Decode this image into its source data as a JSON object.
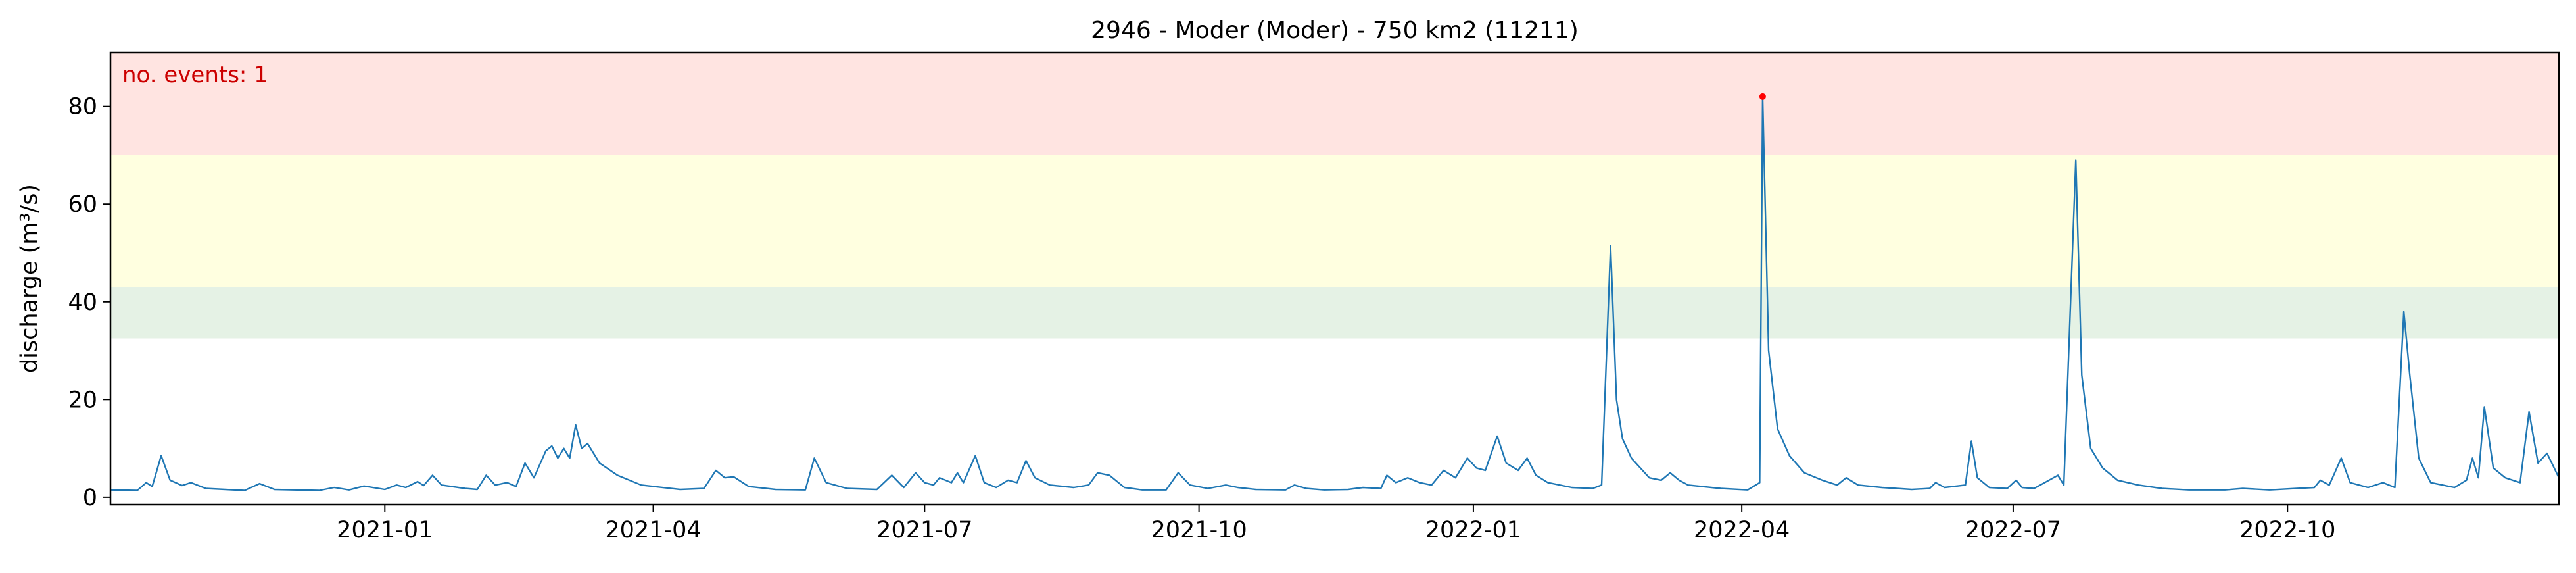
{
  "chart_data": {
    "type": "line",
    "title": "2946 - Moder (Moder) - 750 km2 (11211)",
    "xlabel": "",
    "ylabel": "discharge (m³/s)",
    "xlim": [
      "2020-10-01",
      "2022-12-31"
    ],
    "ylim": [
      -1.5,
      91
    ],
    "grid": false,
    "legend": "none",
    "x_tick_labels": [
      "2021-01",
      "2021-04",
      "2021-07",
      "2021-10",
      "2022-01",
      "2022-04",
      "2022-07",
      "2022-10"
    ],
    "x_ticks": [
      "2021-01-01",
      "2021-04-01",
      "2021-07-01",
      "2021-10-01",
      "2022-01-01",
      "2022-04-01",
      "2022-07-01",
      "2022-10-01"
    ],
    "y_tick_labels": [
      "0",
      "20",
      "40",
      "60",
      "80"
    ],
    "y_ticks": [
      0,
      20,
      40,
      60,
      80
    ],
    "bands": [
      {
        "name": "green",
        "y0": 32.5,
        "y1": 43,
        "color": "#e5f2e5"
      },
      {
        "name": "yellow",
        "y0": 43,
        "y1": 70,
        "color": "#ffffe0"
      },
      {
        "name": "red",
        "y0": 70,
        "y1": 91,
        "color": "#ffe4e1"
      }
    ],
    "annotation": {
      "text": "no. events: 1",
      "color": "#cc0000"
    },
    "event_points": [
      {
        "x": "2022-04-08",
        "y": 82
      }
    ],
    "series_color": "#1f77b4",
    "event_color": "#ff0000",
    "series": [
      {
        "name": "",
        "points": [
          [
            "2020-10-01",
            1.5
          ],
          [
            "2020-10-10",
            1.4
          ],
          [
            "2020-10-13",
            3.0
          ],
          [
            "2020-10-15",
            2.2
          ],
          [
            "2020-10-18",
            8.5
          ],
          [
            "2020-10-21",
            3.5
          ],
          [
            "2020-10-25",
            2.4
          ],
          [
            "2020-10-28",
            3.0
          ],
          [
            "2020-11-02",
            1.8
          ],
          [
            "2020-11-15",
            1.4
          ],
          [
            "2020-11-20",
            2.8
          ],
          [
            "2020-11-25",
            1.6
          ],
          [
            "2020-12-10",
            1.4
          ],
          [
            "2020-12-15",
            2.0
          ],
          [
            "2020-12-20",
            1.5
          ],
          [
            "2020-12-25",
            2.3
          ],
          [
            "2021-01-01",
            1.6
          ],
          [
            "2021-01-05",
            2.5
          ],
          [
            "2021-01-08",
            2.0
          ],
          [
            "2021-01-12",
            3.2
          ],
          [
            "2021-01-14",
            2.4
          ],
          [
            "2021-01-17",
            4.5
          ],
          [
            "2021-01-20",
            2.5
          ],
          [
            "2021-01-28",
            1.8
          ],
          [
            "2021-02-01",
            1.6
          ],
          [
            "2021-02-04",
            4.5
          ],
          [
            "2021-02-07",
            2.5
          ],
          [
            "2021-02-11",
            3.0
          ],
          [
            "2021-02-14",
            2.2
          ],
          [
            "2021-02-17",
            7.0
          ],
          [
            "2021-02-20",
            4.0
          ],
          [
            "2021-02-24",
            9.5
          ],
          [
            "2021-02-26",
            10.5
          ],
          [
            "2021-02-28",
            8.0
          ],
          [
            "2021-03-02",
            10.0
          ],
          [
            "2021-03-04",
            8.0
          ],
          [
            "2021-03-06",
            14.8
          ],
          [
            "2021-03-08",
            10.0
          ],
          [
            "2021-03-10",
            11.0
          ],
          [
            "2021-03-14",
            7.0
          ],
          [
            "2021-03-20",
            4.5
          ],
          [
            "2021-03-28",
            2.5
          ],
          [
            "2021-04-10",
            1.6
          ],
          [
            "2021-04-18",
            1.8
          ],
          [
            "2021-04-22",
            5.5
          ],
          [
            "2021-04-25",
            4.0
          ],
          [
            "2021-04-28",
            4.2
          ],
          [
            "2021-05-03",
            2.2
          ],
          [
            "2021-05-12",
            1.6
          ],
          [
            "2021-05-22",
            1.5
          ],
          [
            "2021-05-25",
            8.0
          ],
          [
            "2021-05-29",
            3.0
          ],
          [
            "2021-06-05",
            1.8
          ],
          [
            "2021-06-15",
            1.6
          ],
          [
            "2021-06-20",
            4.5
          ],
          [
            "2021-06-24",
            2.0
          ],
          [
            "2021-06-28",
            5.0
          ],
          [
            "2021-07-01",
            3.0
          ],
          [
            "2021-07-04",
            2.5
          ],
          [
            "2021-07-06",
            4.0
          ],
          [
            "2021-07-10",
            3.0
          ],
          [
            "2021-07-12",
            5.0
          ],
          [
            "2021-07-14",
            3.0
          ],
          [
            "2021-07-18",
            8.5
          ],
          [
            "2021-07-21",
            3.0
          ],
          [
            "2021-07-25",
            2.0
          ],
          [
            "2021-07-29",
            3.5
          ],
          [
            "2021-08-01",
            3.0
          ],
          [
            "2021-08-04",
            7.5
          ],
          [
            "2021-08-07",
            4.0
          ],
          [
            "2021-08-12",
            2.5
          ],
          [
            "2021-08-20",
            2.0
          ],
          [
            "2021-08-25",
            2.5
          ],
          [
            "2021-08-28",
            5.0
          ],
          [
            "2021-09-01",
            4.5
          ],
          [
            "2021-09-06",
            2.0
          ],
          [
            "2021-09-12",
            1.5
          ],
          [
            "2021-09-20",
            1.5
          ],
          [
            "2021-09-24",
            5.0
          ],
          [
            "2021-09-28",
            2.5
          ],
          [
            "2021-10-04",
            1.8
          ],
          [
            "2021-10-10",
            2.5
          ],
          [
            "2021-10-14",
            2.0
          ],
          [
            "2021-10-20",
            1.6
          ],
          [
            "2021-10-30",
            1.5
          ],
          [
            "2021-11-02",
            2.5
          ],
          [
            "2021-11-06",
            1.8
          ],
          [
            "2021-11-12",
            1.5
          ],
          [
            "2021-11-20",
            1.6
          ],
          [
            "2021-11-25",
            2.0
          ],
          [
            "2021-12-01",
            1.8
          ],
          [
            "2021-12-03",
            4.5
          ],
          [
            "2021-12-06",
            3.0
          ],
          [
            "2021-12-10",
            4.0
          ],
          [
            "2021-12-14",
            3.0
          ],
          [
            "2021-12-18",
            2.5
          ],
          [
            "2021-12-22",
            5.5
          ],
          [
            "2021-12-26",
            4.0
          ],
          [
            "2021-12-30",
            8.0
          ],
          [
            "2022-01-02",
            6.0
          ],
          [
            "2022-01-05",
            5.5
          ],
          [
            "2022-01-09",
            12.5
          ],
          [
            "2022-01-12",
            7.0
          ],
          [
            "2022-01-16",
            5.5
          ],
          [
            "2022-01-19",
            8.0
          ],
          [
            "2022-01-22",
            4.5
          ],
          [
            "2022-01-26",
            3.0
          ],
          [
            "2022-02-03",
            2.0
          ],
          [
            "2022-02-10",
            1.8
          ],
          [
            "2022-02-13",
            2.5
          ],
          [
            "2022-02-16",
            51.5
          ],
          [
            "2022-02-18",
            20.0
          ],
          [
            "2022-02-20",
            12.0
          ],
          [
            "2022-02-23",
            8.0
          ],
          [
            "2022-02-26",
            6.0
          ],
          [
            "2022-03-01",
            4.0
          ],
          [
            "2022-03-05",
            3.5
          ],
          [
            "2022-03-08",
            5.0
          ],
          [
            "2022-03-11",
            3.5
          ],
          [
            "2022-03-14",
            2.5
          ],
          [
            "2022-03-25",
            1.8
          ],
          [
            "2022-04-03",
            1.5
          ],
          [
            "2022-04-07",
            3.0
          ],
          [
            "2022-04-08",
            82.0
          ],
          [
            "2022-04-10",
            30.0
          ],
          [
            "2022-04-13",
            14.0
          ],
          [
            "2022-04-17",
            8.5
          ],
          [
            "2022-04-22",
            5.0
          ],
          [
            "2022-04-28",
            3.5
          ],
          [
            "2022-05-03",
            2.5
          ],
          [
            "2022-05-06",
            4.0
          ],
          [
            "2022-05-10",
            2.5
          ],
          [
            "2022-05-18",
            2.0
          ],
          [
            "2022-05-28",
            1.6
          ],
          [
            "2022-06-03",
            1.8
          ],
          [
            "2022-06-05",
            3.0
          ],
          [
            "2022-06-08",
            2.0
          ],
          [
            "2022-06-15",
            2.5
          ],
          [
            "2022-06-17",
            11.5
          ],
          [
            "2022-06-19",
            4.0
          ],
          [
            "2022-06-23",
            2.0
          ],
          [
            "2022-06-29",
            1.8
          ],
          [
            "2022-07-02",
            3.5
          ],
          [
            "2022-07-04",
            2.0
          ],
          [
            "2022-07-08",
            1.8
          ],
          [
            "2022-07-16",
            4.5
          ],
          [
            "2022-07-18",
            2.5
          ],
          [
            "2022-07-22",
            69.0
          ],
          [
            "2022-07-24",
            25.0
          ],
          [
            "2022-07-27",
            10.0
          ],
          [
            "2022-07-31",
            6.0
          ],
          [
            "2022-08-05",
            3.5
          ],
          [
            "2022-08-12",
            2.5
          ],
          [
            "2022-08-20",
            1.8
          ],
          [
            "2022-08-29",
            1.5
          ],
          [
            "2022-09-10",
            1.5
          ],
          [
            "2022-09-16",
            1.8
          ],
          [
            "2022-09-25",
            1.5
          ],
          [
            "2022-10-10",
            2.0
          ],
          [
            "2022-10-12",
            3.5
          ],
          [
            "2022-10-15",
            2.5
          ],
          [
            "2022-10-19",
            8.0
          ],
          [
            "2022-10-22",
            3.0
          ],
          [
            "2022-10-25",
            2.5
          ],
          [
            "2022-10-28",
            2.0
          ],
          [
            "2022-11-02",
            3.0
          ],
          [
            "2022-11-06",
            2.0
          ],
          [
            "2022-11-09",
            38.0
          ],
          [
            "2022-11-11",
            25.0
          ],
          [
            "2022-11-14",
            8.0
          ],
          [
            "2022-11-18",
            3.0
          ],
          [
            "2022-11-22",
            2.5
          ],
          [
            "2022-11-26",
            2.0
          ],
          [
            "2022-11-30",
            3.5
          ],
          [
            "2022-12-02",
            8.0
          ],
          [
            "2022-12-04",
            4.0
          ],
          [
            "2022-12-06",
            18.5
          ],
          [
            "2022-12-09",
            6.0
          ],
          [
            "2022-12-13",
            4.0
          ],
          [
            "2022-12-18",
            3.0
          ],
          [
            "2022-12-21",
            17.5
          ],
          [
            "2022-12-24",
            7.0
          ],
          [
            "2022-12-27",
            9.0
          ],
          [
            "2022-12-31",
            4.0
          ]
        ]
      }
    ]
  }
}
